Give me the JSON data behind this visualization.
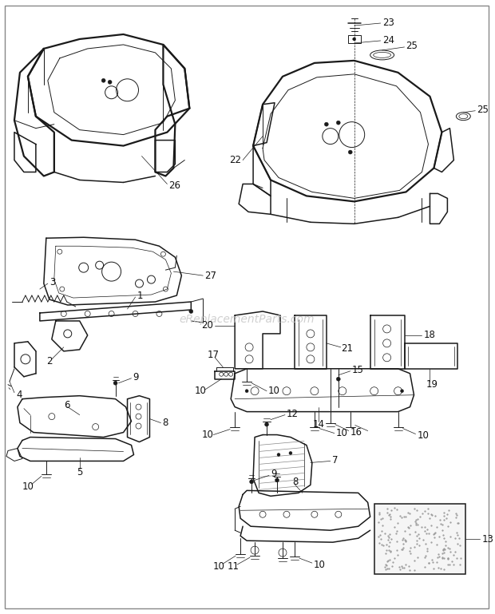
{
  "bg_color": "#ffffff",
  "line_color": "#1a1a1a",
  "label_color": "#111111",
  "watermark": "eReplacementParts.com",
  "watermark_color": "#c8c8c8",
  "figsize": [
    6.2,
    7.69
  ],
  "dpi": 100,
  "border_lw": 1.0,
  "border_color": "#888888",
  "lw_thick": 1.6,
  "lw_med": 1.1,
  "lw_thin": 0.7,
  "lw_xtra": 0.5,
  "label_fs": 8.5
}
